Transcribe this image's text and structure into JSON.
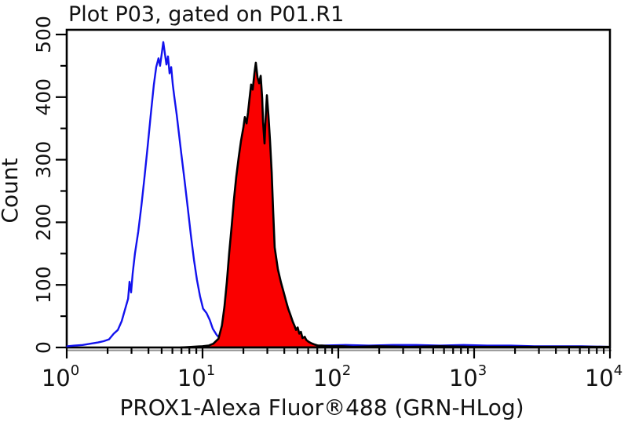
{
  "window": {
    "title": "Plot P03, gated on P01.R1"
  },
  "colors": {
    "background": "#ffffff",
    "frame": "#000000",
    "text": "#121212",
    "blue_histogram": "#1212ee",
    "red_fill": "#fa0000",
    "red_outline": "#000000",
    "frame_shadow": "#8f8f8f"
  },
  "chart_data": {
    "type": "area",
    "subtype": "flow-cytometry-overlay-histogram",
    "title": "Plot P03, gated on P01.R1",
    "xlabel": "PROX1-Alexa Fluor®488 (GRN-HLog)",
    "ylabel": "Count",
    "x_scale": "log",
    "xlim": [
      1,
      10000
    ],
    "ylim": [
      0,
      500
    ],
    "x_tick_exponents": [
      0,
      1,
      2,
      3,
      4
    ],
    "x_tick_labels": [
      "10^0",
      "10^1",
      "10^2",
      "10^3",
      "10^4"
    ],
    "y_ticks": [
      0,
      100,
      200,
      300,
      400,
      500
    ],
    "y_minor_step": 50,
    "grid": false,
    "legend": "none",
    "series": [
      {
        "name": "blue-open-histogram",
        "style": "open",
        "color": "#1212ee",
        "peak_x": 5.2,
        "peak_count": 488,
        "points": [
          [
            1.01,
            2
          ],
          [
            1.14,
            3
          ],
          [
            1.31,
            4
          ],
          [
            1.49,
            6
          ],
          [
            1.7,
            8
          ],
          [
            1.87,
            10
          ],
          [
            2.05,
            13
          ],
          [
            2.22,
            22
          ],
          [
            2.38,
            28
          ],
          [
            2.54,
            42
          ],
          [
            2.68,
            60
          ],
          [
            2.83,
            78
          ],
          [
            2.9,
            105
          ],
          [
            2.98,
            88
          ],
          [
            3.06,
            118
          ],
          [
            3.18,
            150
          ],
          [
            3.36,
            185
          ],
          [
            3.54,
            225
          ],
          [
            3.73,
            270
          ],
          [
            3.94,
            320
          ],
          [
            4.15,
            370
          ],
          [
            4.38,
            420
          ],
          [
            4.56,
            448
          ],
          [
            4.74,
            462
          ],
          [
            4.87,
            450
          ],
          [
            5.0,
            468
          ],
          [
            5.14,
            488
          ],
          [
            5.28,
            470
          ],
          [
            5.42,
            452
          ],
          [
            5.57,
            465
          ],
          [
            5.72,
            438
          ],
          [
            5.88,
            448
          ],
          [
            6.04,
            420
          ],
          [
            6.2,
            400
          ],
          [
            6.45,
            372
          ],
          [
            6.72,
            340
          ],
          [
            6.99,
            308
          ],
          [
            7.36,
            268
          ],
          [
            7.77,
            225
          ],
          [
            8.2,
            180
          ],
          [
            8.65,
            140
          ],
          [
            9.1,
            108
          ],
          [
            9.58,
            82
          ],
          [
            10.1,
            62
          ],
          [
            10.7,
            55
          ],
          [
            11.3,
            44
          ],
          [
            11.9,
            30
          ],
          [
            12.7,
            20
          ],
          [
            13.6,
            13
          ],
          [
            14.7,
            8
          ],
          [
            16.0,
            6
          ],
          [
            17.5,
            4
          ],
          [
            20.0,
            3
          ],
          [
            24.5,
            2
          ],
          [
            30.0,
            2
          ],
          [
            39.0,
            3
          ],
          [
            54.3,
            2
          ],
          [
            75.6,
            3
          ],
          [
            113,
            4
          ],
          [
            168,
            3
          ],
          [
            251,
            4
          ],
          [
            375,
            4
          ],
          [
            560,
            3
          ],
          [
            836,
            4
          ],
          [
            1250,
            3
          ],
          [
            1860,
            3
          ],
          [
            2780,
            2
          ],
          [
            4160,
            2
          ],
          [
            6210,
            2
          ],
          [
            9950,
            1
          ]
        ]
      },
      {
        "name": "red-filled-histogram",
        "style": "filled",
        "fill": "#fa0000",
        "color": "#000000",
        "peak_x": 24.7,
        "peak_count": 455,
        "points": [
          [
            6.9,
            0
          ],
          [
            8.4,
            1
          ],
          [
            10.0,
            2
          ],
          [
            11.1,
            3
          ],
          [
            12.0,
            6
          ],
          [
            13.1,
            14
          ],
          [
            13.9,
            35
          ],
          [
            14.5,
            65
          ],
          [
            15.1,
            105
          ],
          [
            15.7,
            150
          ],
          [
            16.4,
            195
          ],
          [
            17.0,
            235
          ],
          [
            17.7,
            272
          ],
          [
            18.5,
            305
          ],
          [
            19.2,
            330
          ],
          [
            20.0,
            352
          ],
          [
            20.5,
            368
          ],
          [
            21.1,
            358
          ],
          [
            21.6,
            375
          ],
          [
            22.2,
            398
          ],
          [
            22.8,
            420
          ],
          [
            23.4,
            412
          ],
          [
            24.1,
            438
          ],
          [
            24.7,
            455
          ],
          [
            25.4,
            432
          ],
          [
            26.1,
            422
          ],
          [
            26.8,
            434
          ],
          [
            27.5,
            398
          ],
          [
            27.9,
            360
          ],
          [
            28.6,
            326
          ],
          [
            29.0,
            358
          ],
          [
            29.8,
            403
          ],
          [
            30.6,
            370
          ],
          [
            31.4,
            330
          ],
          [
            32.3,
            280
          ],
          [
            33.1,
            220
          ],
          [
            34.0,
            160
          ],
          [
            35.9,
            125
          ],
          [
            37.8,
            104
          ],
          [
            39.4,
            90
          ],
          [
            41.0,
            76
          ],
          [
            42.7,
            62
          ],
          [
            44.4,
            52
          ],
          [
            46.2,
            41
          ],
          [
            47.5,
            35
          ],
          [
            48.8,
            28
          ],
          [
            50.2,
            32
          ],
          [
            51.6,
            22
          ],
          [
            53.0,
            25
          ],
          [
            54.5,
            15
          ],
          [
            56.6,
            17
          ],
          [
            58.1,
            12
          ],
          [
            60.5,
            9
          ],
          [
            62.9,
            7
          ],
          [
            66.3,
            5
          ],
          [
            70.9,
            3
          ],
          [
            75.6,
            3
          ],
          [
            86.9,
            2
          ],
          [
            106,
            2
          ],
          [
            129,
            1
          ],
          [
            192,
            2
          ],
          [
            329,
            1
          ],
          [
            561,
            2
          ],
          [
            959,
            1
          ],
          [
            1870,
            1
          ],
          [
            3650,
            1
          ],
          [
            9950,
            1
          ]
        ]
      }
    ]
  }
}
